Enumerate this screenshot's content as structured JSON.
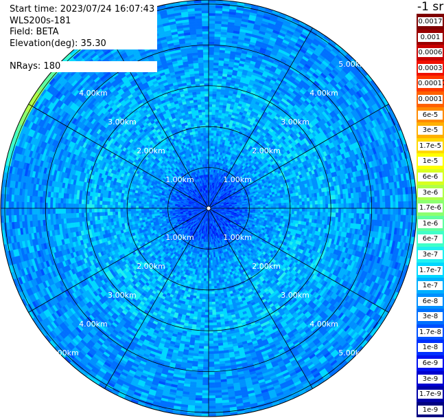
{
  "info": {
    "start_time": "Start time: 2023/07/24 16:07:43",
    "instrument": "WLS200s-181",
    "field": "Field: BETA",
    "elevation": "Elevation(deg): 35.30",
    "nrays": "NRays: 180"
  },
  "colorbar": {
    "unit": "-1 sr",
    "labels": [
      "0.0017",
      "0.001",
      "0.0006",
      "0.0003",
      "0.00017",
      "0.0001",
      "6e-5",
      "3e-5",
      "1.7e-5",
      "1e-5",
      "6e-6",
      "3e-6",
      "1.7e-6",
      "1e-6",
      "6e-7",
      "3e-7",
      "1.7e-7",
      "1e-7",
      "6e-8",
      "3e-8",
      "1.7e-8",
      "1e-8",
      "6e-9",
      "3e-9",
      "1.7e-9",
      "1e-9"
    ],
    "colors": [
      "#7f0000",
      "#9a0000",
      "#c80000",
      "#f01000",
      "#ff3800",
      "#ff6000",
      "#ff8a00",
      "#ffb000",
      "#ffd800",
      "#ffff00",
      "#d8ff20",
      "#b0ff48",
      "#8cff70",
      "#60ffa0",
      "#40ffc8",
      "#20f0f0",
      "#00d8ff",
      "#00b0ff",
      "#0090ff",
      "#0070ff",
      "#0050ff",
      "#0030ff",
      "#0010f0",
      "#0000d0",
      "#0000a8",
      "#000080"
    ]
  },
  "chart_data": {
    "type": "heatmap",
    "subtype": "polar PPI scan",
    "field": "BETA",
    "elevation_deg": 35.3,
    "nrays": 180,
    "range_rings_km": [
      1.0,
      2.0,
      3.0,
      4.0,
      5.0
    ],
    "ring_labels": [
      "1.00km",
      "2.00km",
      "3.00km",
      "4.00km",
      "5.00km"
    ],
    "max_range_km": 5.1,
    "azimuth_spokes_deg": [
      0,
      30,
      60,
      90,
      120,
      150,
      180,
      210,
      240,
      270,
      300,
      330
    ],
    "colorscale": "log jet, 1e-9 to 0.0017 sr-1",
    "value_profile": [
      {
        "range_km": 0.0,
        "beta": 1.7e-08
      },
      {
        "range_km": 0.6,
        "beta": 1.7e-08
      },
      {
        "range_km": 1.2,
        "beta": 6e-08
      },
      {
        "range_km": 2.0,
        "beta": 1e-07
      },
      {
        "range_km": 3.0,
        "beta": 1e-07
      },
      {
        "range_km": 4.0,
        "beta": 6e-08
      },
      {
        "range_km": 5.0,
        "beta": 6e-08
      }
    ],
    "edge_feature": {
      "azimuth_range_deg": [
        270,
        330
      ],
      "range_km": 5.0,
      "beta": 3e-06
    }
  }
}
